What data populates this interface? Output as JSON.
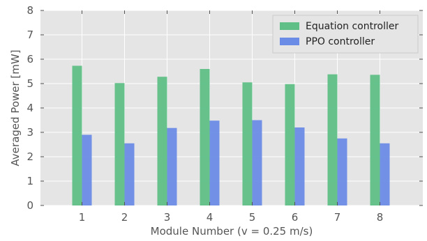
{
  "chart_data": {
    "type": "bar",
    "title": "",
    "xlabel": "Module Number (v = 0.25 m/s)",
    "ylabel": "Averaged Power [mW]",
    "categories": [
      "1",
      "2",
      "3",
      "4",
      "5",
      "6",
      "7",
      "8"
    ],
    "ylim": [
      0,
      8
    ],
    "yticks": [
      "0",
      "1",
      "2",
      "3",
      "4",
      "5",
      "6",
      "7",
      "8"
    ],
    "grid": true,
    "legend_position": "top-right",
    "series": [
      {
        "name": "Equation controller",
        "color": "#5fbf86",
        "values": [
          5.73,
          5.02,
          5.28,
          5.6,
          5.05,
          4.98,
          5.38,
          5.36
        ]
      },
      {
        "name": "PPO controller",
        "color": "#6b8ce6",
        "values": [
          2.9,
          2.55,
          3.18,
          3.48,
          3.5,
          3.2,
          2.75,
          2.55
        ]
      }
    ]
  },
  "colors": {
    "plot_background": "#e5e5e5",
    "grid": "#ffffff"
  }
}
